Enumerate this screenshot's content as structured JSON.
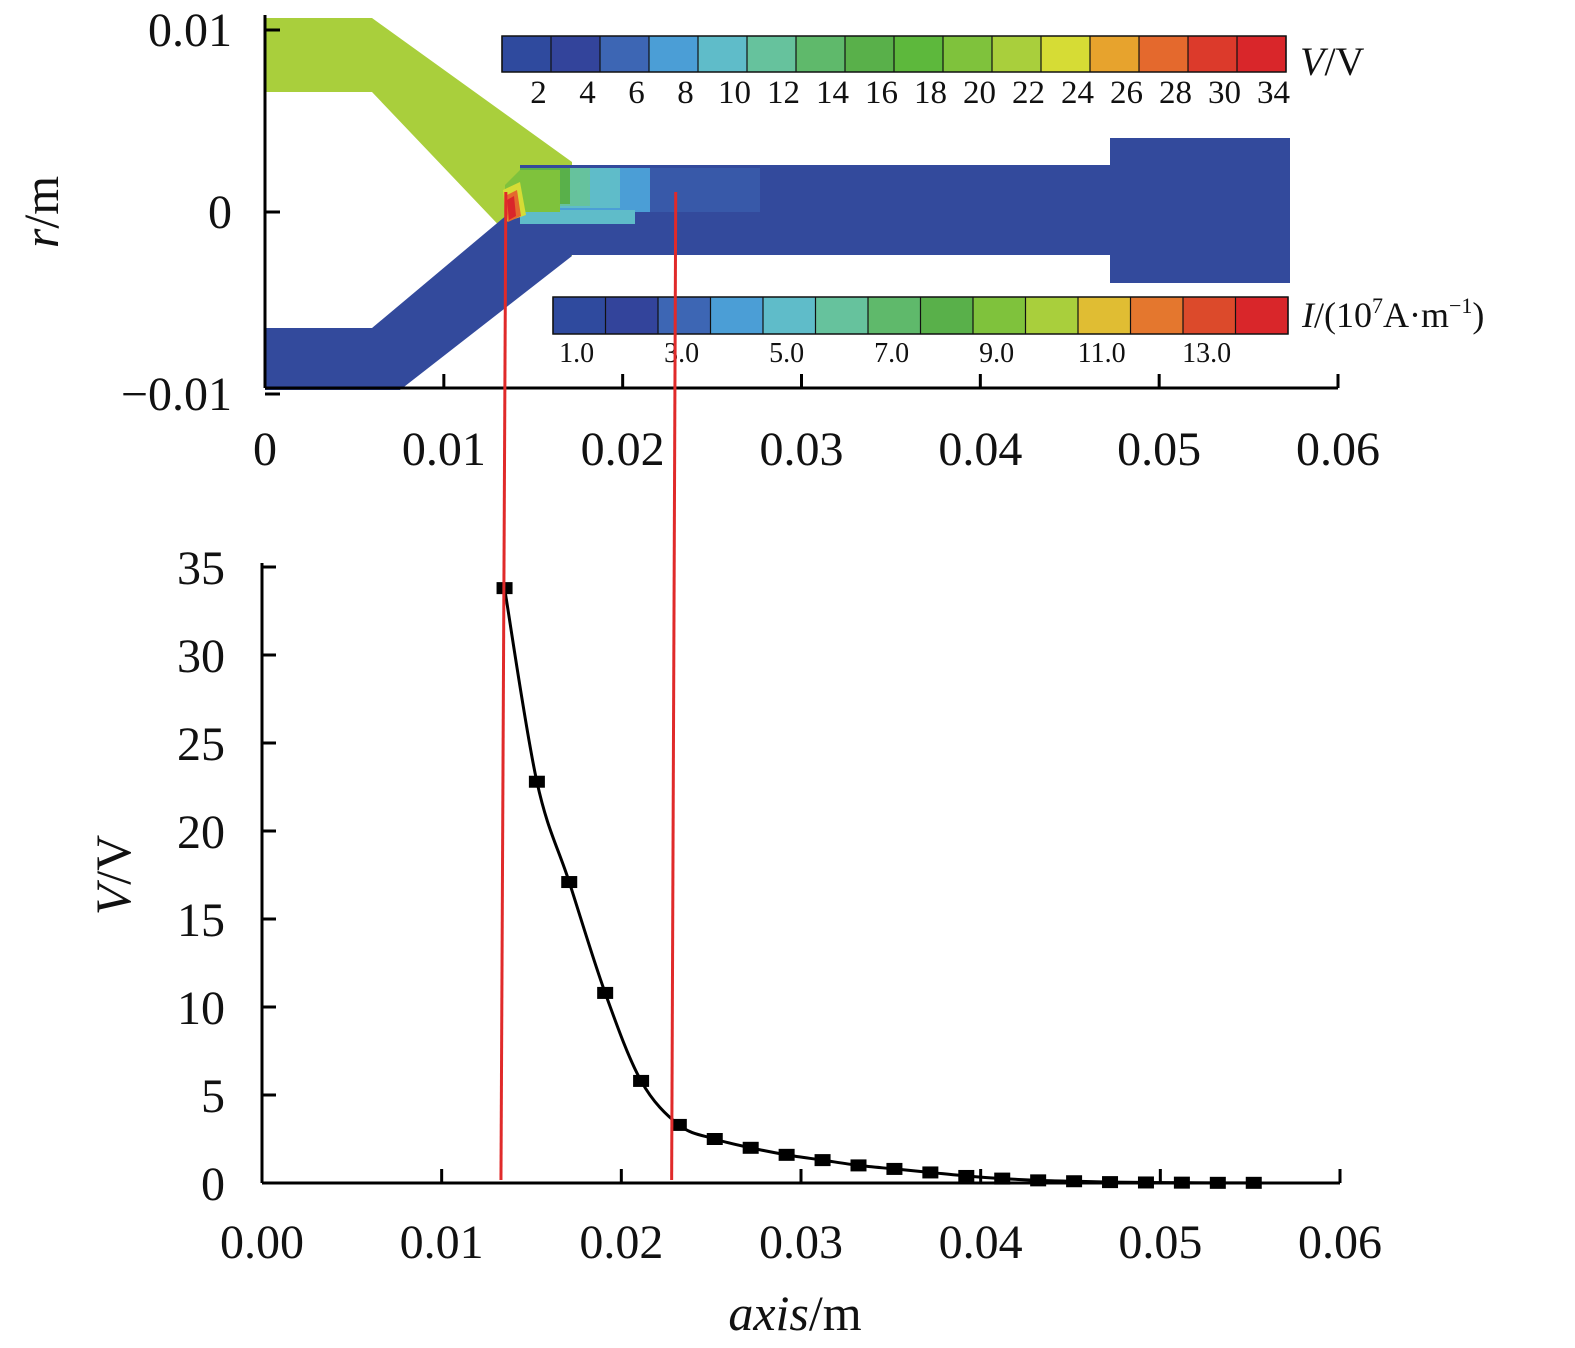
{
  "chart_data": [
    {
      "type": "heatmap",
      "xlim": [
        0,
        0.06
      ],
      "ylim": [
        -0.01,
        0.01
      ],
      "x_ticks": [
        "0",
        "0.01",
        "0.02",
        "0.03",
        "0.04",
        "0.05",
        "0.06"
      ],
      "y_ticks": [
        "0.01",
        "0",
        "−0.01"
      ],
      "y_ticks_values": [
        0.01,
        0,
        -0.01
      ],
      "ylabel_italic": "r",
      "ylabel_unit": "/m",
      "colorbar_voltage": {
        "label_italic": "V",
        "label_unit": "/V",
        "tick_labels": [
          "2",
          "4",
          "6",
          "8",
          "10",
          "12",
          "14",
          "16",
          "18",
          "20",
          "22",
          "24",
          "26",
          "28",
          "30",
          "34"
        ],
        "colors": [
          "#2f4a9e",
          "#33449b",
          "#3d66b4",
          "#4b9ed6",
          "#5fbcc9",
          "#66c29d",
          "#5fb96b",
          "#59b04a",
          "#5db83c",
          "#7fc23c",
          "#a9cf3c",
          "#d6dc35",
          "#e7a32d",
          "#e4692d",
          "#dc3a2b",
          "#d9262a"
        ]
      },
      "colorbar_current": {
        "label_italic": "I",
        "label_unit": "/(10",
        "label_exp": "7",
        "label_unit2": "A·m",
        "label_exp2": "−1",
        "label_close": ")",
        "tick_labels": [
          "1.0",
          "3.0",
          "5.0",
          "7.0",
          "9.0",
          "11.0",
          "13.0"
        ],
        "colors": [
          "#2f4a9e",
          "#33449b",
          "#3d66b4",
          "#4b9ed6",
          "#5fbcc9",
          "#66c29d",
          "#5fb96b",
          "#59b04a",
          "#7fc23c",
          "#a9cf3c",
          "#e0bd33",
          "#e4772e",
          "#dc4a2b",
          "#d9262a"
        ]
      }
    },
    {
      "type": "line",
      "xlabel_italic": "axis",
      "xlabel_unit": "/m",
      "ylabel_italic": "V",
      "ylabel_unit": "/V",
      "xlim": [
        0,
        0.06
      ],
      "ylim": [
        0,
        35
      ],
      "x_ticks": [
        "0.00",
        "0.01",
        "0.02",
        "0.03",
        "0.04",
        "0.05",
        "0.06"
      ],
      "y_ticks": [
        "0",
        "5",
        "10",
        "15",
        "20",
        "25",
        "30",
        "35"
      ],
      "marker": "square",
      "line_color": "#000000",
      "x": [
        0.0135,
        0.0153,
        0.0171,
        0.0191,
        0.0211,
        0.0232,
        0.0252,
        0.0272,
        0.0292,
        0.0312,
        0.0332,
        0.0352,
        0.0372,
        0.0392,
        0.0412,
        0.0432,
        0.0452,
        0.0472,
        0.0492,
        0.0512,
        0.0532,
        0.0552
      ],
      "y": [
        33.8,
        22.8,
        17.1,
        10.8,
        5.8,
        3.3,
        2.5,
        2.0,
        1.6,
        1.3,
        1.0,
        0.8,
        0.6,
        0.4,
        0.25,
        0.15,
        0.1,
        0.05,
        0.03,
        0.02,
        0.01,
        0.01
      ],
      "reference_lines_x": [
        0.0133,
        0.0228
      ],
      "reference_line_color": "#e02a2a"
    }
  ]
}
